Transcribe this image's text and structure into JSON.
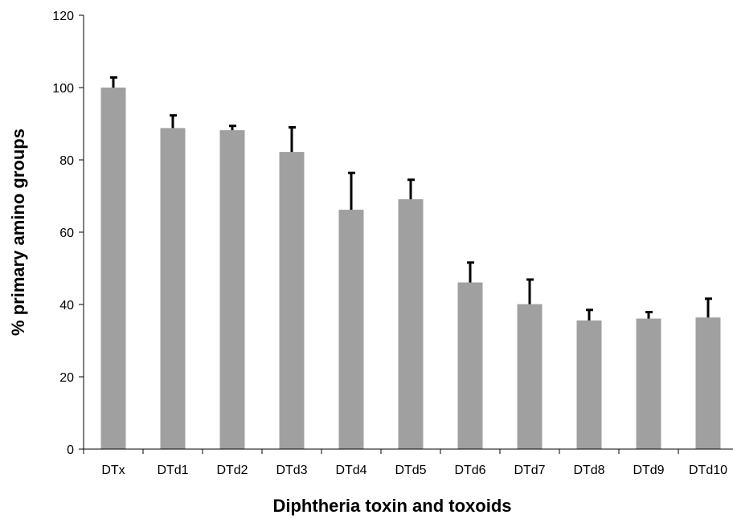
{
  "chart_data": {
    "type": "bar",
    "title": "",
    "xlabel": "Diphtheria toxin and toxoids",
    "ylabel": "% primary amino groups",
    "categories": [
      "DTx",
      "DTd1",
      "DTd2",
      "DTd3",
      "DTd4",
      "DTd5",
      "DTd6",
      "DTd7",
      "DTd8",
      "DTd9",
      "DTd10"
    ],
    "values": [
      100,
      88.8,
      88.2,
      82.2,
      66.2,
      69.1,
      46.1,
      40.1,
      35.6,
      36.1,
      36.4
    ],
    "error_upper": [
      2.8,
      3.5,
      1.2,
      6.8,
      10.2,
      5.4,
      5.5,
      6.8,
      2.9,
      1.8,
      5.2
    ],
    "ylim": [
      0,
      120
    ],
    "yticks": [
      0,
      20,
      40,
      60,
      80,
      100,
      120
    ],
    "grid": false,
    "legend": "none",
    "bar_color": "#a0a0a0",
    "error_bar_color": "#000000"
  }
}
